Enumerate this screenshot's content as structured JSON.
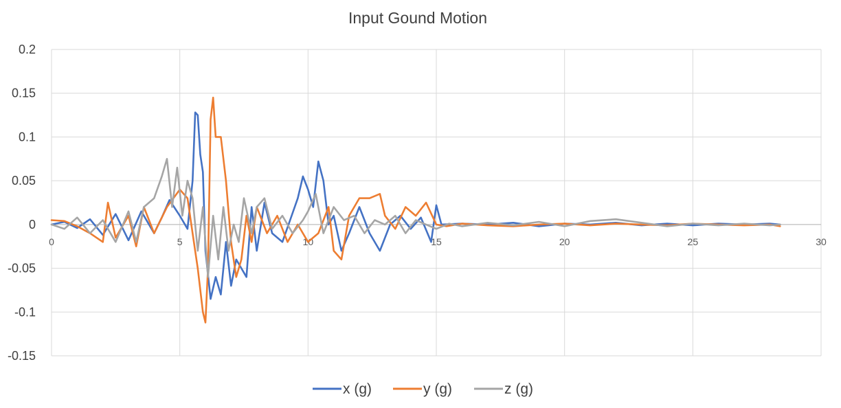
{
  "chart_data": {
    "type": "line",
    "title": "Input Gound Motion",
    "xlabel": "",
    "ylabel": "",
    "xlim": [
      0,
      30
    ],
    "ylim": [
      -0.15,
      0.2
    ],
    "x_ticks": [
      "0",
      "5",
      "10",
      "15",
      "20",
      "25",
      "30"
    ],
    "y_ticks": [
      "0.2",
      "0.15",
      "0.1",
      "0.05",
      "0",
      "-0.05",
      "-0.1",
      "-0.15"
    ],
    "grid": true,
    "legend_position": "bottom",
    "series": [
      {
        "name": "x (g)",
        "color": "#4472C4",
        "points": [
          [
            0,
            0.0
          ],
          [
            0.5,
            0.003
          ],
          [
            1,
            -0.004
          ],
          [
            1.5,
            0.006
          ],
          [
            2,
            -0.012
          ],
          [
            2.5,
            0.012
          ],
          [
            3,
            -0.018
          ],
          [
            3.5,
            0.015
          ],
          [
            4,
            -0.01
          ],
          [
            4.3,
            0.008
          ],
          [
            4.6,
            0.028
          ],
          [
            5,
            0.01
          ],
          [
            5.3,
            -0.005
          ],
          [
            5.5,
            0.05
          ],
          [
            5.6,
            0.128
          ],
          [
            5.7,
            0.125
          ],
          [
            5.8,
            0.08
          ],
          [
            5.9,
            0.06
          ],
          [
            6.0,
            -0.03
          ],
          [
            6.2,
            -0.085
          ],
          [
            6.4,
            -0.06
          ],
          [
            6.6,
            -0.08
          ],
          [
            6.8,
            -0.02
          ],
          [
            7.0,
            -0.07
          ],
          [
            7.2,
            -0.04
          ],
          [
            7.4,
            -0.05
          ],
          [
            7.6,
            -0.06
          ],
          [
            7.8,
            0.02
          ],
          [
            8.0,
            -0.03
          ],
          [
            8.3,
            0.025
          ],
          [
            8.6,
            -0.01
          ],
          [
            9.0,
            -0.02
          ],
          [
            9.3,
            0.005
          ],
          [
            9.6,
            0.03
          ],
          [
            9.8,
            0.055
          ],
          [
            10.0,
            0.04
          ],
          [
            10.2,
            0.02
          ],
          [
            10.4,
            0.072
          ],
          [
            10.6,
            0.05
          ],
          [
            10.8,
            0.0
          ],
          [
            11.0,
            0.01
          ],
          [
            11.3,
            -0.03
          ],
          [
            11.6,
            -0.01
          ],
          [
            12.0,
            0.02
          ],
          [
            12.4,
            -0.01
          ],
          [
            12.8,
            -0.03
          ],
          [
            13.2,
            0.0
          ],
          [
            13.6,
            0.01
          ],
          [
            14.0,
            -0.005
          ],
          [
            14.4,
            0.008
          ],
          [
            14.8,
            -0.02
          ],
          [
            15.0,
            0.022
          ],
          [
            15.2,
            0.0
          ],
          [
            16,
            0.001
          ],
          [
            17,
            0.0
          ],
          [
            18,
            0.002
          ],
          [
            19,
            -0.002
          ],
          [
            20,
            0.001
          ],
          [
            21,
            0.0
          ],
          [
            22,
            0.002
          ],
          [
            23,
            -0.001
          ],
          [
            24,
            0.001
          ],
          [
            25,
            -0.001
          ],
          [
            26,
            0.001
          ],
          [
            27,
            0.0
          ],
          [
            28,
            0.001
          ],
          [
            28.4,
            0.0
          ]
        ]
      },
      {
        "name": "y (g)",
        "color": "#ED7D31",
        "points": [
          [
            0,
            0.005
          ],
          [
            0.5,
            0.004
          ],
          [
            1,
            -0.002
          ],
          [
            1.5,
            -0.01
          ],
          [
            2,
            -0.02
          ],
          [
            2.2,
            0.025
          ],
          [
            2.5,
            -0.015
          ],
          [
            3,
            0.01
          ],
          [
            3.3,
            -0.025
          ],
          [
            3.6,
            0.02
          ],
          [
            4,
            -0.01
          ],
          [
            4.5,
            0.02
          ],
          [
            5,
            0.04
          ],
          [
            5.3,
            0.03
          ],
          [
            5.5,
            -0.01
          ],
          [
            5.7,
            -0.05
          ],
          [
            5.9,
            -0.1
          ],
          [
            6.0,
            -0.112
          ],
          [
            6.1,
            -0.05
          ],
          [
            6.2,
            0.12
          ],
          [
            6.3,
            0.145
          ],
          [
            6.4,
            0.1
          ],
          [
            6.6,
            0.1
          ],
          [
            6.8,
            0.05
          ],
          [
            7.0,
            -0.02
          ],
          [
            7.2,
            -0.06
          ],
          [
            7.4,
            -0.04
          ],
          [
            7.6,
            0.01
          ],
          [
            7.8,
            -0.02
          ],
          [
            8.0,
            0.02
          ],
          [
            8.4,
            -0.01
          ],
          [
            8.8,
            0.01
          ],
          [
            9.2,
            -0.02
          ],
          [
            9.6,
            0.0
          ],
          [
            10.0,
            -0.02
          ],
          [
            10.4,
            -0.01
          ],
          [
            10.8,
            0.02
          ],
          [
            11.0,
            -0.03
          ],
          [
            11.3,
            -0.04
          ],
          [
            11.6,
            0.01
          ],
          [
            12.0,
            0.03
          ],
          [
            12.4,
            0.03
          ],
          [
            12.8,
            0.035
          ],
          [
            13.0,
            0.01
          ],
          [
            13.4,
            -0.005
          ],
          [
            13.8,
            0.02
          ],
          [
            14.2,
            0.01
          ],
          [
            14.6,
            0.025
          ],
          [
            15.0,
            0.0
          ],
          [
            15.4,
            -0.002
          ],
          [
            16,
            0.001
          ],
          [
            17,
            -0.001
          ],
          [
            18,
            -0.002
          ],
          [
            19,
            0.0
          ],
          [
            20,
            0.001
          ],
          [
            21,
            -0.001
          ],
          [
            22,
            0.001
          ],
          [
            23,
            0.0
          ],
          [
            24,
            -0.001
          ],
          [
            25,
            0.001
          ],
          [
            26,
            0.0
          ],
          [
            27,
            -0.001
          ],
          [
            28,
            0.0
          ],
          [
            28.4,
            -0.002
          ]
        ]
      },
      {
        "name": "z (g)",
        "color": "#A5A5A5",
        "points": [
          [
            0,
            0.0
          ],
          [
            0.5,
            -0.005
          ],
          [
            1,
            0.008
          ],
          [
            1.5,
            -0.01
          ],
          [
            2,
            0.005
          ],
          [
            2.5,
            -0.02
          ],
          [
            3,
            0.015
          ],
          [
            3.3,
            -0.02
          ],
          [
            3.6,
            0.02
          ],
          [
            4,
            0.03
          ],
          [
            4.3,
            0.055
          ],
          [
            4.5,
            0.075
          ],
          [
            4.7,
            0.02
          ],
          [
            4.9,
            0.065
          ],
          [
            5.1,
            0.01
          ],
          [
            5.3,
            0.05
          ],
          [
            5.5,
            0.03
          ],
          [
            5.7,
            -0.03
          ],
          [
            5.9,
            0.02
          ],
          [
            6.1,
            -0.06
          ],
          [
            6.3,
            0.01
          ],
          [
            6.5,
            -0.04
          ],
          [
            6.7,
            0.02
          ],
          [
            6.9,
            -0.03
          ],
          [
            7.1,
            0.0
          ],
          [
            7.3,
            -0.02
          ],
          [
            7.5,
            0.03
          ],
          [
            7.8,
            -0.01
          ],
          [
            8.0,
            0.02
          ],
          [
            8.3,
            0.03
          ],
          [
            8.6,
            -0.005
          ],
          [
            9.0,
            0.01
          ],
          [
            9.4,
            -0.01
          ],
          [
            9.8,
            0.005
          ],
          [
            10.0,
            0.015
          ],
          [
            10.3,
            0.035
          ],
          [
            10.6,
            -0.01
          ],
          [
            11.0,
            0.02
          ],
          [
            11.4,
            0.005
          ],
          [
            11.8,
            0.01
          ],
          [
            12.2,
            -0.01
          ],
          [
            12.6,
            0.005
          ],
          [
            13.0,
            0.0
          ],
          [
            13.4,
            0.01
          ],
          [
            13.8,
            -0.01
          ],
          [
            14.2,
            0.005
          ],
          [
            14.6,
            0.0
          ],
          [
            15.0,
            -0.005
          ],
          [
            15.5,
            0.001
          ],
          [
            16,
            -0.002
          ],
          [
            17,
            0.002
          ],
          [
            18,
            -0.001
          ],
          [
            19,
            0.003
          ],
          [
            20,
            -0.002
          ],
          [
            21,
            0.004
          ],
          [
            22,
            0.006
          ],
          [
            23,
            0.002
          ],
          [
            24,
            -0.002
          ],
          [
            25,
            0.001
          ],
          [
            26,
            -0.001
          ],
          [
            27,
            0.001
          ],
          [
            28,
            -0.001
          ],
          [
            28.4,
            0.0
          ]
        ]
      }
    ]
  }
}
